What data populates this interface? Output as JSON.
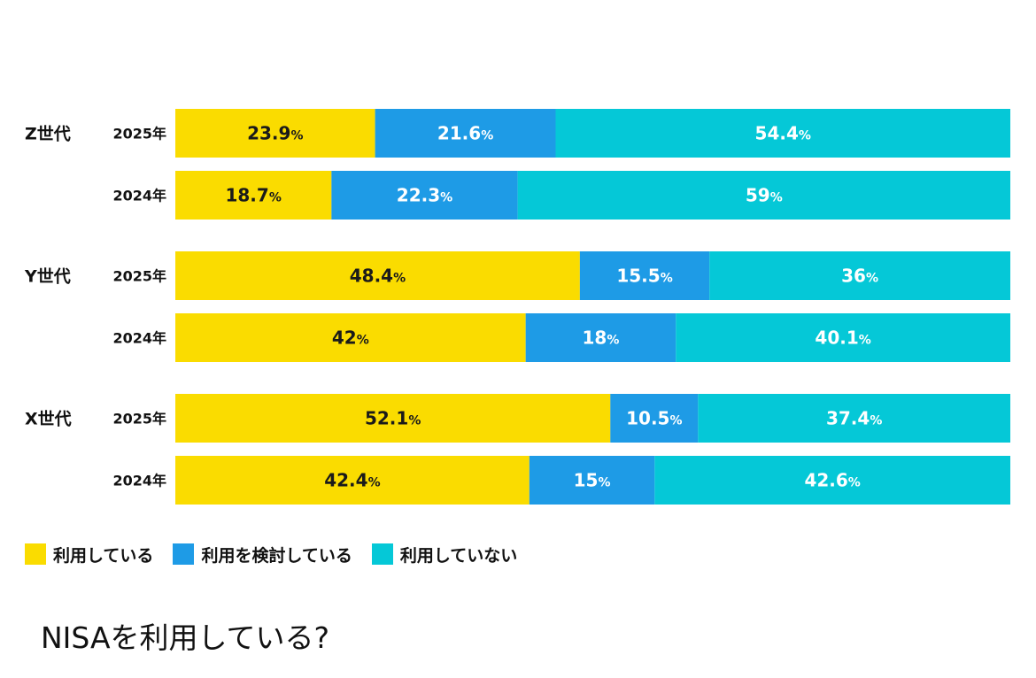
{
  "chart_data": {
    "type": "bar",
    "orientation": "horizontal",
    "stacked": true,
    "percent_stacked": true,
    "title": "NISAを利用している?",
    "groups": [
      {
        "label": "Z世代",
        "rows": [
          {
            "year": "2025年",
            "values": [
              23.9,
              21.6,
              54.4
            ],
            "labels": [
              "23.9",
              "21.6",
              "54.4"
            ]
          },
          {
            "year": "2024年",
            "values": [
              18.7,
              22.3,
              59
            ],
            "labels": [
              "18.7",
              "22.3",
              "59"
            ]
          }
        ]
      },
      {
        "label": "Y世代",
        "rows": [
          {
            "year": "2025年",
            "values": [
              48.4,
              15.5,
              36
            ],
            "labels": [
              "48.4",
              "15.5",
              "36"
            ]
          },
          {
            "year": "2024年",
            "values": [
              42,
              18,
              40.1
            ],
            "labels": [
              "42",
              "18",
              "40.1"
            ]
          }
        ]
      },
      {
        "label": "X世代",
        "rows": [
          {
            "year": "2025年",
            "values": [
              52.1,
              10.5,
              37.4
            ],
            "labels": [
              "52.1",
              "10.5",
              "37.4"
            ]
          },
          {
            "year": "2024年",
            "values": [
              42.4,
              15,
              42.6
            ],
            "labels": [
              "42.4",
              "15",
              "42.6"
            ]
          }
        ]
      }
    ],
    "series": [
      {
        "name": "利用している",
        "color": "#FADC00",
        "text_color": "#1a1a1a"
      },
      {
        "name": "利用を検討している",
        "color": "#1E9BE6",
        "text_color": "#ffffff"
      },
      {
        "name": "利用していない",
        "color": "#05C8D7",
        "text_color": "#ffffff"
      }
    ],
    "percent_sign": "%",
    "legend_position": "bottom-left",
    "grid": false
  }
}
